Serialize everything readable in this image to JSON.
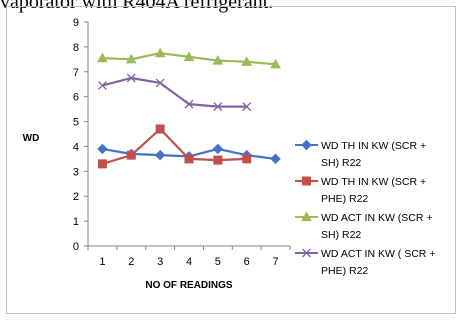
{
  "page": {
    "header_text": "vaporator with R404A refrigerant."
  },
  "chart_data": {
    "type": "line",
    "title": "",
    "xlabel": "NO OF READINGS",
    "ylabel": "WD",
    "x": [
      1,
      2,
      3,
      4,
      5,
      6,
      7
    ],
    "ylim": [
      0,
      9
    ],
    "yticks": [
      0,
      1,
      2,
      3,
      4,
      5,
      6,
      7,
      8,
      9
    ],
    "grid": false,
    "legend_position": "right",
    "series": [
      {
        "name": "WD TH IN KW (SCR + SH) R22",
        "legend_lines": [
          "WD TH IN KW (SCR +",
          "SH) R22"
        ],
        "color": "#4472C4",
        "marker": "diamond",
        "values": [
          3.9,
          3.7,
          3.65,
          3.6,
          3.9,
          3.65,
          3.5
        ]
      },
      {
        "name": "WD TH IN KW (SCR + PHE) R22",
        "legend_lines": [
          "WD TH IN KW (SCR +",
          "PHE) R22"
        ],
        "color": "#C0504D",
        "marker": "square",
        "values": [
          3.3,
          3.65,
          4.7,
          3.5,
          3.45,
          3.5,
          null
        ]
      },
      {
        "name": "WD ACT IN KW (SCR + SH) R22",
        "legend_lines": [
          "WD ACT IN KW (SCR +",
          "SH) R22"
        ],
        "color": "#9BBB59",
        "marker": "triangle",
        "values": [
          7.55,
          7.5,
          7.75,
          7.6,
          7.45,
          7.4,
          7.3
        ]
      },
      {
        "name": "WD ACT IN KW ( SCR + PHE) R22",
        "legend_lines": [
          "WD ACT IN KW ( SCR +",
          "PHE) R22"
        ],
        "color": "#8064A2",
        "marker": "x",
        "values": [
          6.45,
          6.75,
          6.55,
          5.7,
          5.6,
          5.6,
          null
        ]
      }
    ]
  }
}
